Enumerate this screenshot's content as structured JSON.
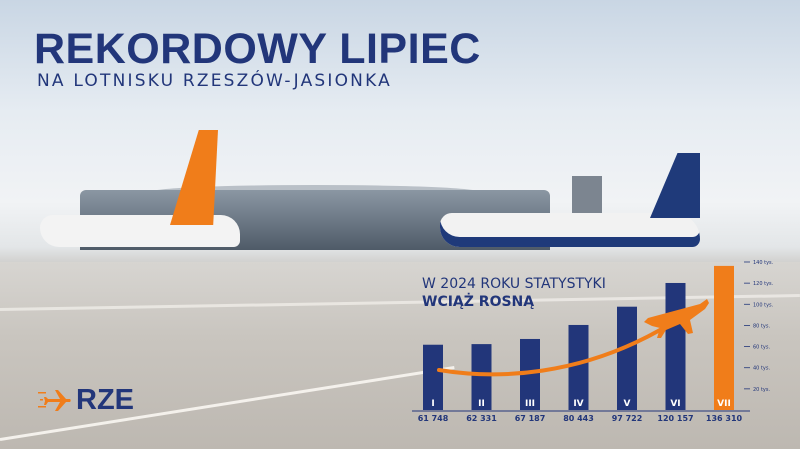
{
  "header": {
    "title": "REKORDOWY LIPIEC",
    "subtitle": "NA LOTNISKU RZESZÓW-JASIONKA"
  },
  "chart_heading": {
    "line1": "W 2024 ROKU STATYSTYKI",
    "line2": "WCIĄŻ ROSNĄ"
  },
  "logo": {
    "text": "RZE"
  },
  "colors": {
    "brand_blue": "#22367a",
    "accent_orange": "#f07d1a"
  },
  "chart_data": {
    "type": "bar",
    "categories": [
      "I",
      "II",
      "III",
      "IV",
      "V",
      "VI",
      "VII"
    ],
    "values": [
      61748,
      62331,
      67187,
      80443,
      97722,
      120157,
      136310
    ],
    "value_labels": [
      "61 748",
      "62 331",
      "67 187",
      "80 443",
      "97 722",
      "120 157",
      "136 310"
    ],
    "highlight_index": 6,
    "ylim": [
      0,
      140000
    ],
    "yticks": [
      20000,
      40000,
      60000,
      80000,
      100000,
      120000,
      140000
    ],
    "ytick_labels": [
      "20 tys.",
      "40 tys.",
      "60 tys.",
      "80 tys.",
      "100 tys.",
      "120 tys.",
      "140 tys."
    ],
    "yaxis_position": "right",
    "grid": false
  }
}
